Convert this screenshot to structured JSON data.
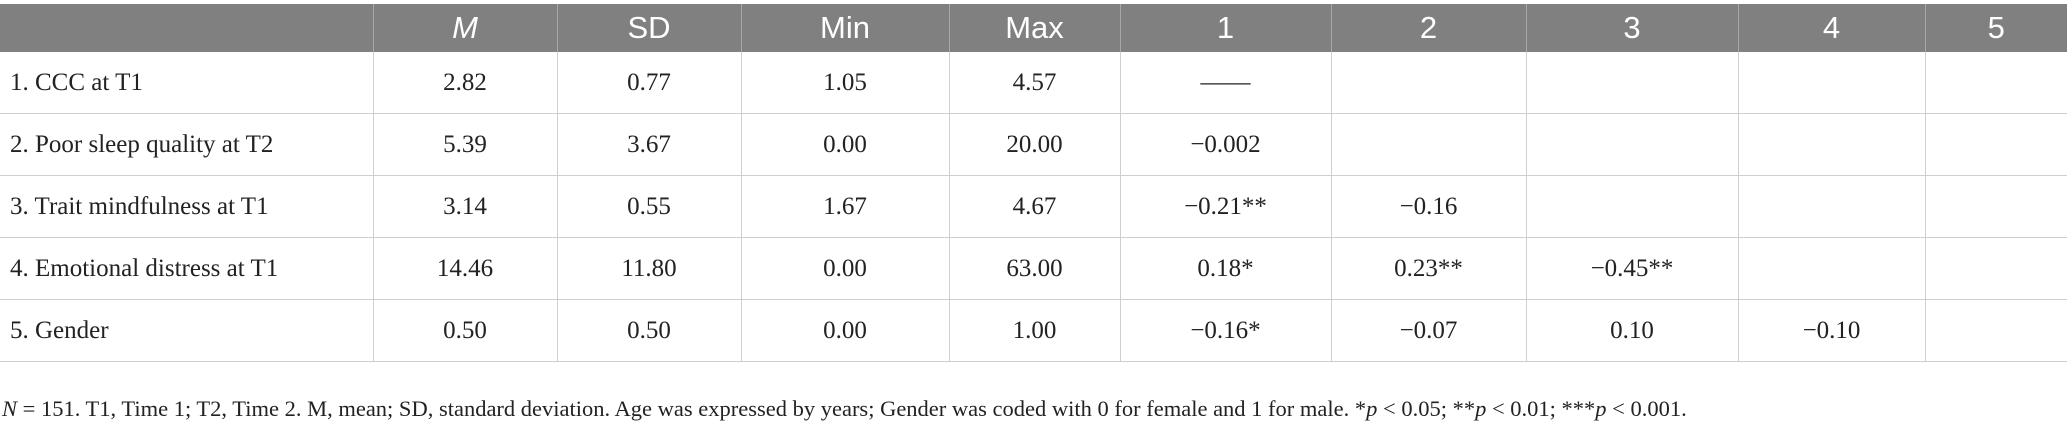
{
  "table": {
    "headers": [
      "",
      "M",
      "SD",
      "Min",
      "Max",
      "1",
      "2",
      "3",
      "4",
      "5"
    ],
    "rows": [
      [
        "1. CCC at T1",
        "2.82",
        "0.77",
        "1.05",
        "4.57",
        "——",
        "",
        "",
        "",
        ""
      ],
      [
        "2. Poor sleep quality at T2",
        "5.39",
        "3.67",
        "0.00",
        "20.00",
        "−0.002",
        "",
        "",
        "",
        ""
      ],
      [
        "3. Trait mindfulness at T1",
        "3.14",
        "0.55",
        "1.67",
        "4.67",
        "−0.21**",
        "−0.16",
        "",
        "",
        ""
      ],
      [
        "4. Emotional distress at T1",
        "14.46",
        "11.80",
        "0.00",
        "63.00",
        "0.18*",
        "0.23**",
        "−0.45**",
        "",
        ""
      ],
      [
        "5. Gender",
        "0.50",
        "0.50",
        "0.00",
        "1.00",
        "−0.16*",
        "−0.07",
        "0.10",
        "−0.10",
        ""
      ]
    ]
  },
  "note": {
    "n_label": "N",
    "text_1": " = 151. T1, Time 1; T2, Time 2. M, mean; SD, standard deviation. Age was expressed by years; Gender was coded with 0 for female and 1 for male. *",
    "p1": "p",
    "text_2": " < 0.05; **",
    "p2": "p",
    "text_3": " < 0.01; ***",
    "p3": "p",
    "text_4": " < 0.001."
  }
}
